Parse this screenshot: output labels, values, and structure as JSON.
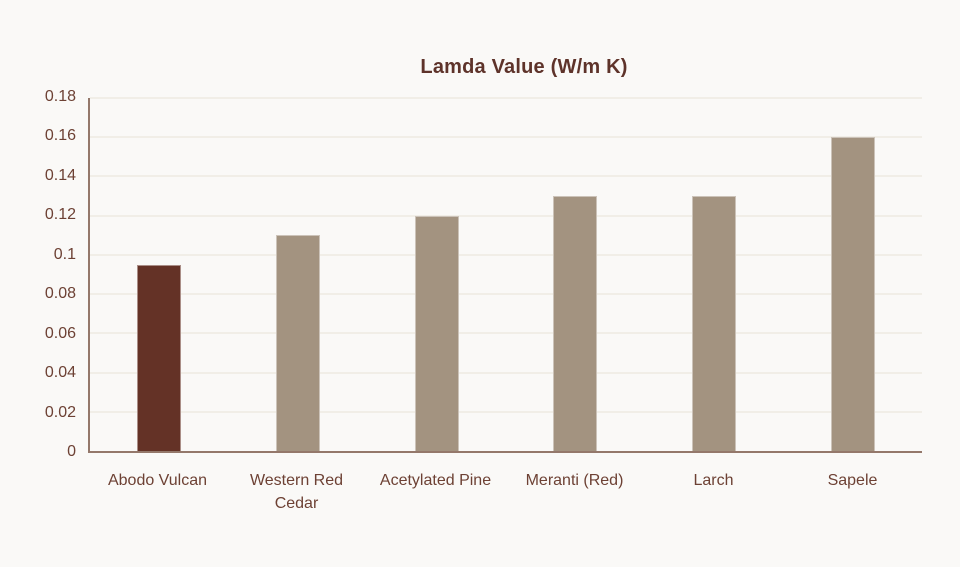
{
  "chart_data": {
    "type": "bar",
    "title": "Lamda Value (W/m K)",
    "categories": [
      "Abodo Vulcan",
      "Western Red Cedar",
      "Acetylated Pine",
      "Meranti (Red)",
      "Larch",
      "Sapele"
    ],
    "values": [
      0.095,
      0.11,
      0.12,
      0.13,
      0.13,
      0.16
    ],
    "bar_colors": [
      "#643226",
      "#a39380",
      "#a39380",
      "#a39380",
      "#a39380",
      "#a39380"
    ],
    "ylim": [
      0,
      0.18
    ],
    "ytick_labels": [
      "0",
      "0.02",
      "0.04",
      "0.06",
      "0.08",
      "0.1",
      "0.12",
      "0.14",
      "0.16",
      "0.18"
    ],
    "grid": "horizontal",
    "legend": "none",
    "xlabel": "",
    "ylabel": ""
  },
  "colors": {
    "background": "#faf9f7",
    "title_text": "#5e332a",
    "tick_text": "#6d4134",
    "axis_line": "#94786b",
    "grid_line": "#f1eee7",
    "highlight_bar": "#643226",
    "default_bar": "#a39380"
  }
}
